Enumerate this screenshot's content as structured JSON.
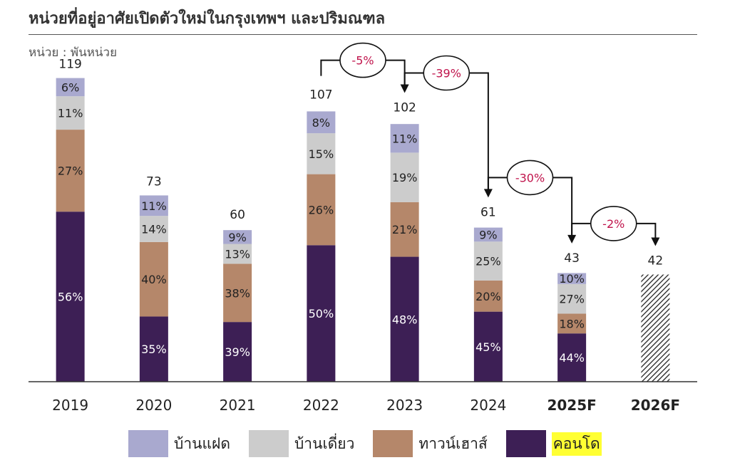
{
  "title": "หน่วยที่อยู่อาศัยเปิดตัวใหม่ในกรุงเทพฯ และปริมณฑล",
  "unit_label": "หน่วย : พันหน่วย",
  "colors": {
    "single_house": "#a9a9cf",
    "detached": "#cccccc",
    "townhouse": "#b5876a",
    "condo": "#3d1f55",
    "growth_text": "#c0144c"
  },
  "legend": [
    {
      "key": "single_house",
      "label": "บ้านแฝด"
    },
    {
      "key": "detached",
      "label": "บ้านเดี่ยว"
    },
    {
      "key": "townhouse",
      "label": "ทาวน์เฮาส์"
    },
    {
      "key": "condo",
      "label": "คอนโด",
      "highlight": true
    }
  ],
  "chart_data": {
    "type": "bar",
    "stacked": true,
    "categories": [
      "2019",
      "2020",
      "2021",
      "2022",
      "2023",
      "2024",
      "2025F",
      "2026F"
    ],
    "totals": [
      119,
      73,
      60,
      107,
      102,
      61,
      43,
      42
    ],
    "series": [
      {
        "key": "condo",
        "name": "คอนโด",
        "percent_labels": [
          "56%",
          "35%",
          "39%",
          "50%",
          "48%",
          "45%",
          "44%",
          ""
        ]
      },
      {
        "key": "townhouse",
        "name": "ทาวน์เฮาส์",
        "percent_labels": [
          "27%",
          "40%",
          "38%",
          "26%",
          "21%",
          "20%",
          "18%",
          ""
        ]
      },
      {
        "key": "detached",
        "name": "บ้านเดี่ยว",
        "percent_labels": [
          "11%",
          "14%",
          "13%",
          "15%",
          "19%",
          "25%",
          "27%",
          ""
        ]
      },
      {
        "key": "single_house",
        "name": "บ้านแฝด",
        "percent_labels": [
          "6%",
          "11%",
          "9%",
          "8%",
          "11%",
          "9%",
          "10%",
          ""
        ]
      }
    ],
    "shares": [
      [
        0.56,
        0.27,
        0.11,
        0.06
      ],
      [
        0.35,
        0.4,
        0.14,
        0.11
      ],
      [
        0.39,
        0.38,
        0.13,
        0.09
      ],
      [
        0.5,
        0.26,
        0.15,
        0.08
      ],
      [
        0.48,
        0.21,
        0.19,
        0.11
      ],
      [
        0.45,
        0.2,
        0.25,
        0.09
      ],
      [
        0.44,
        0.18,
        0.27,
        0.1
      ],
      null
    ],
    "bold_categories": [
      "2025F",
      "2026F"
    ],
    "hatched_categories": [
      "2026F"
    ],
    "growth_annotations": [
      {
        "from": "2022",
        "to": "2023",
        "label": "-5%"
      },
      {
        "from": "2023",
        "to": "2024",
        "label": "-39%"
      },
      {
        "from": "2024",
        "to": "2025F",
        "label": "-30%"
      },
      {
        "from": "2025F",
        "to": "2026F",
        "label": "-2%"
      }
    ],
    "ylim": [
      0,
      120
    ]
  }
}
